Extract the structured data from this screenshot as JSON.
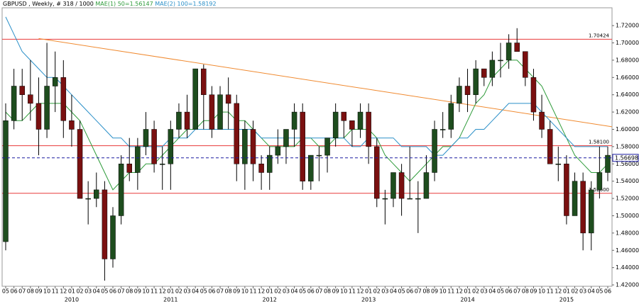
{
  "chart_data": {
    "type": "candlestick",
    "header": [
      "GBPUSD , Weekly, # 318 / 1000",
      "MAE(1) 50=1.56147",
      "MAE(2) 100=1.58192"
    ],
    "categories": [
      "05",
      "06",
      "07",
      "08",
      "09",
      "10",
      "11",
      "12",
      "01",
      "02",
      "03",
      "04",
      "05",
      "06",
      "07",
      "08",
      "09",
      "10",
      "11",
      "12",
      "01",
      "02",
      "03",
      "04",
      "05",
      "06",
      "07",
      "08",
      "09",
      "10",
      "11",
      "12",
      "01",
      "02",
      "03",
      "04",
      "05",
      "06",
      "07",
      "08",
      "09",
      "10",
      "11",
      "12",
      "01",
      "02",
      "03",
      "04",
      "05",
      "06",
      "07",
      "08",
      "09",
      "10",
      "11",
      "12",
      "01",
      "02",
      "03",
      "04",
      "05",
      "06",
      "07",
      "08",
      "09",
      "10",
      "11",
      "12",
      "01",
      "02",
      "03",
      "04",
      "05",
      "06"
    ],
    "years": [
      "2010",
      "2011",
      "2012",
      "2013",
      "2014",
      "2015"
    ],
    "open": [
      1.47,
      1.61,
      1.65,
      1.64,
      1.63,
      1.6,
      1.65,
      1.66,
      1.61,
      1.6,
      1.52,
      1.52,
      1.53,
      1.45,
      1.5,
      1.56,
      1.55,
      1.58,
      1.6,
      1.56,
      1.56,
      1.6,
      1.62,
      1.6,
      1.67,
      1.64,
      1.6,
      1.64,
      1.63,
      1.56,
      1.6,
      1.56,
      1.55,
      1.57,
      1.58,
      1.6,
      1.62,
      1.54,
      1.57,
      1.57,
      1.59,
      1.62,
      1.61,
      1.6,
      1.62,
      1.58,
      1.52,
      1.52,
      1.55,
      1.52,
      1.52,
      1.52,
      1.55,
      1.6,
      1.6,
      1.63,
      1.65,
      1.64,
      1.67,
      1.66,
      1.68,
      1.68,
      1.7,
      1.69,
      1.66,
      1.62,
      1.6,
      1.56,
      1.56,
      1.5,
      1.54,
      1.48,
      1.53,
      1.55
    ],
    "high": [
      1.63,
      1.67,
      1.67,
      1.68,
      1.66,
      1.7,
      1.69,
      1.68,
      1.64,
      1.61,
      1.54,
      1.55,
      1.54,
      1.51,
      1.57,
      1.59,
      1.59,
      1.62,
      1.61,
      1.58,
      1.61,
      1.63,
      1.64,
      1.67,
      1.675,
      1.65,
      1.65,
      1.66,
      1.64,
      1.61,
      1.61,
      1.57,
      1.58,
      1.6,
      1.6,
      1.63,
      1.63,
      1.57,
      1.58,
      1.59,
      1.63,
      1.62,
      1.61,
      1.63,
      1.63,
      1.59,
      1.53,
      1.55,
      1.56,
      1.58,
      1.54,
      1.57,
      1.61,
      1.62,
      1.64,
      1.66,
      1.67,
      1.68,
      1.67,
      1.69,
      1.7,
      1.71,
      1.717,
      1.69,
      1.67,
      1.64,
      1.61,
      1.58,
      1.57,
      1.55,
      1.55,
      1.54,
      1.58,
      1.58
    ],
    "low": [
      1.46,
      1.6,
      1.61,
      1.61,
      1.57,
      1.59,
      1.62,
      1.59,
      1.58,
      1.52,
      1.49,
      1.51,
      1.425,
      1.44,
      1.49,
      1.54,
      1.53,
      1.57,
      1.55,
      1.53,
      1.53,
      1.59,
      1.59,
      1.6,
      1.6,
      1.59,
      1.6,
      1.6,
      1.54,
      1.53,
      1.54,
      1.53,
      1.53,
      1.56,
      1.56,
      1.58,
      1.53,
      1.53,
      1.54,
      1.55,
      1.58,
      1.59,
      1.58,
      1.59,
      1.56,
      1.51,
      1.49,
      1.51,
      1.5,
      1.52,
      1.48,
      1.52,
      1.54,
      1.59,
      1.59,
      1.62,
      1.62,
      1.63,
      1.65,
      1.65,
      1.66,
      1.67,
      1.69,
      1.65,
      1.61,
      1.59,
      1.56,
      1.54,
      1.49,
      1.5,
      1.46,
      1.46,
      1.52,
      1.54
    ],
    "close": [
      1.61,
      1.65,
      1.64,
      1.63,
      1.6,
      1.65,
      1.66,
      1.61,
      1.6,
      1.52,
      1.52,
      1.53,
      1.45,
      1.5,
      1.56,
      1.55,
      1.58,
      1.6,
      1.56,
      1.56,
      1.6,
      1.62,
      1.6,
      1.67,
      1.64,
      1.6,
      1.64,
      1.63,
      1.56,
      1.6,
      1.56,
      1.55,
      1.57,
      1.58,
      1.6,
      1.62,
      1.54,
      1.57,
      1.57,
      1.59,
      1.62,
      1.61,
      1.6,
      1.62,
      1.58,
      1.52,
      1.52,
      1.55,
      1.52,
      1.52,
      1.52,
      1.55,
      1.6,
      1.6,
      1.63,
      1.65,
      1.64,
      1.67,
      1.66,
      1.68,
      1.68,
      1.7,
      1.69,
      1.66,
      1.62,
      1.6,
      1.56,
      1.56,
      1.5,
      1.54,
      1.48,
      1.53,
      1.55,
      1.57
    ],
    "up_color": "#1e4d1e",
    "down_color": "#7a1010",
    "series": [
      {
        "name": "MAE(1) 50",
        "color": "#2e9b3a",
        "values": [
          1.62,
          1.61,
          1.61,
          1.62,
          1.63,
          1.63,
          1.63,
          1.63,
          1.62,
          1.61,
          1.59,
          1.57,
          1.55,
          1.53,
          1.54,
          1.55,
          1.55,
          1.56,
          1.56,
          1.57,
          1.58,
          1.59,
          1.6,
          1.6,
          1.61,
          1.61,
          1.62,
          1.62,
          1.61,
          1.61,
          1.6,
          1.59,
          1.58,
          1.58,
          1.58,
          1.58,
          1.59,
          1.59,
          1.58,
          1.58,
          1.59,
          1.59,
          1.6,
          1.6,
          1.6,
          1.59,
          1.57,
          1.56,
          1.55,
          1.54,
          1.55,
          1.56,
          1.57,
          1.58,
          1.58,
          1.59,
          1.61,
          1.63,
          1.64,
          1.66,
          1.67,
          1.68,
          1.68,
          1.67,
          1.66,
          1.65,
          1.63,
          1.61,
          1.59,
          1.57,
          1.56,
          1.55,
          1.55,
          1.56
        ]
      },
      {
        "name": "MAE(2) 100",
        "color": "#2a8fc8",
        "values": [
          1.73,
          1.71,
          1.69,
          1.68,
          1.67,
          1.66,
          1.66,
          1.65,
          1.64,
          1.63,
          1.62,
          1.61,
          1.6,
          1.59,
          1.59,
          1.58,
          1.58,
          1.58,
          1.58,
          1.58,
          1.59,
          1.59,
          1.59,
          1.6,
          1.6,
          1.6,
          1.6,
          1.6,
          1.6,
          1.6,
          1.6,
          1.59,
          1.59,
          1.59,
          1.59,
          1.59,
          1.59,
          1.59,
          1.59,
          1.59,
          1.59,
          1.59,
          1.58,
          1.58,
          1.59,
          1.59,
          1.59,
          1.59,
          1.58,
          1.58,
          1.58,
          1.58,
          1.57,
          1.57,
          1.58,
          1.59,
          1.59,
          1.6,
          1.6,
          1.61,
          1.62,
          1.63,
          1.63,
          1.63,
          1.63,
          1.62,
          1.61,
          1.6,
          1.59,
          1.58,
          1.58,
          1.58,
          1.58,
          1.58
        ]
      }
    ],
    "levels": [
      {
        "value": 1.70424,
        "label": "1.70424"
      },
      {
        "value": 1.581,
        "label": "1.58100"
      },
      {
        "value": 1.526,
        "label": "1.52600"
      }
    ],
    "level_color": "#e83a3a",
    "current": {
      "value": 1.56698,
      "label": "1.56698"
    },
    "current_color": "#1a1aa0",
    "trendline": {
      "values": [
        1.705,
        1.603
      ],
      "color": "#f08a30"
    },
    "ylim": [
      1.4184,
      1.7406
    ],
    "yticks": [
      {
        "value": 1.42,
        "label": "1.42000"
      },
      {
        "value": 1.44,
        "label": "1.44000"
      },
      {
        "value": 1.46,
        "label": "1.46000"
      },
      {
        "value": 1.48,
        "label": "1.48000"
      },
      {
        "value": 1.5,
        "label": "1.50000"
      },
      {
        "value": 1.52,
        "label": "1.52000"
      },
      {
        "value": 1.54,
        "label": "1.54000"
      },
      {
        "value": 1.56,
        "label": "1.56000"
      },
      {
        "value": 1.58,
        "label": "1.58000"
      },
      {
        "value": 1.6,
        "label": "1.60000"
      },
      {
        "value": 1.62,
        "label": "1.62000"
      },
      {
        "value": 1.64,
        "label": "1.64000"
      },
      {
        "value": 1.66,
        "label": "1.66000"
      },
      {
        "value": 1.68,
        "label": "1.68000"
      },
      {
        "value": 1.7,
        "label": "1.70000"
      },
      {
        "value": 1.72,
        "label": "1.72000"
      }
    ],
    "grid": false
  }
}
